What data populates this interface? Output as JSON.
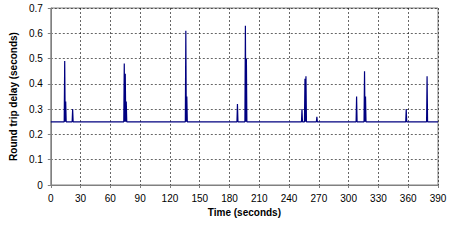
{
  "chart_data": {
    "type": "line",
    "x_label": "Time (seconds)",
    "y_label": "Round trip delay (seconds)",
    "x": [
      0,
      13.5,
      14,
      14.5,
      15,
      15.5,
      21.5,
      22,
      22.5,
      73.5,
      74,
      74.5,
      75,
      75.5,
      76,
      76.5,
      135.5,
      136,
      136.5,
      137,
      137.5,
      187.5,
      188,
      188.5,
      195.5,
      196,
      196.5,
      197,
      197.5,
      252.5,
      253,
      253.5,
      255.5,
      256,
      256.5,
      257,
      257.5,
      267.5,
      268,
      268.5,
      307.5,
      308,
      308.5,
      315.5,
      316,
      316.5,
      317,
      317.5,
      357.5,
      358,
      358.5,
      378.5,
      379,
      379.5,
      390
    ],
    "values": [
      0.25,
      0.25,
      0.49,
      0.25,
      0.33,
      0.25,
      0.25,
      0.3,
      0.25,
      0.25,
      0.48,
      0.25,
      0.44,
      0.25,
      0.33,
      0.25,
      0.25,
      0.61,
      0.25,
      0.35,
      0.25,
      0.25,
      0.32,
      0.25,
      0.25,
      0.63,
      0.25,
      0.5,
      0.25,
      0.25,
      0.3,
      0.25,
      0.25,
      0.42,
      0.25,
      0.43,
      0.25,
      0.25,
      0.27,
      0.25,
      0.25,
      0.35,
      0.25,
      0.25,
      0.45,
      0.25,
      0.35,
      0.25,
      0.25,
      0.3,
      0.25,
      0.25,
      0.43,
      0.25,
      0.25
    ],
    "color": "#000080",
    "xlim": [
      0,
      390
    ],
    "xticks": [
      0,
      30,
      60,
      90,
      120,
      150,
      180,
      210,
      240,
      270,
      300,
      330,
      360,
      390
    ],
    "ylim": [
      0,
      0.7
    ],
    "yticks": [
      0,
      0.1,
      0.2,
      0.3,
      0.4,
      0.5,
      0.6,
      0.7
    ],
    "grid": true
  }
}
